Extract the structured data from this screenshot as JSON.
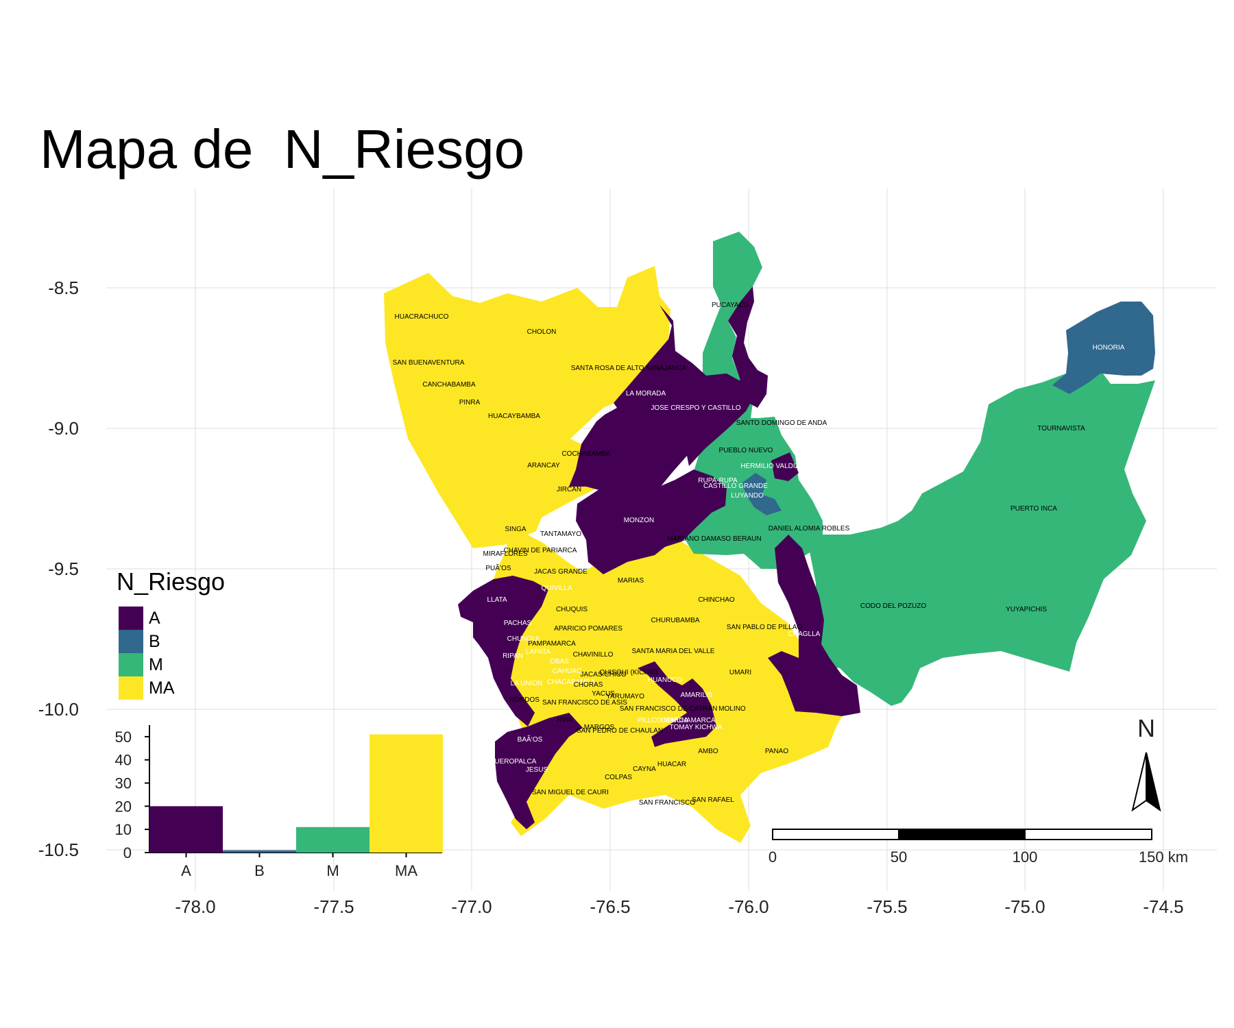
{
  "title": "Mapa de  N_Riesgo",
  "axes": {
    "x_ticks": [
      "-78.0",
      "-77.5",
      "-77.0",
      "-76.5",
      "-76.0",
      "-75.5",
      "-75.0",
      "-74.5"
    ],
    "y_ticks": [
      "-8.5",
      "-9.0",
      "-9.5",
      "-10.0",
      "-10.5"
    ]
  },
  "legend": {
    "title": "N_Riesgo",
    "items": [
      {
        "label": "A",
        "color": "#440154"
      },
      {
        "label": "B",
        "color": "#31688e"
      },
      {
        "label": "M",
        "color": "#35b779"
      },
      {
        "label": "MA",
        "color": "#fde725"
      }
    ]
  },
  "chart_data": {
    "type": "bar",
    "categories": [
      "A",
      "B",
      "M",
      "MA"
    ],
    "values": [
      20,
      1,
      11,
      51
    ],
    "y_ticks": [
      "0",
      "10",
      "20",
      "30",
      "40",
      "50"
    ],
    "ylim": [
      0,
      55
    ],
    "colors": [
      "#440154",
      "#31688e",
      "#35b779",
      "#fde725"
    ]
  },
  "scalebar": {
    "labels": [
      "0",
      "50",
      "100",
      "150 km"
    ]
  },
  "north_arrow": {
    "label": "N"
  },
  "district_labels": [
    "HUACRACHUCO",
    "CHOLON",
    "SAN BUENAVENTURA",
    "SANTA ROSA DE ALTO YANAJANCA",
    "CANCHABAMBA",
    "PINRA",
    "HUACAYBAMBA",
    "LA MORADA",
    "JOSE CRESPO Y CASTILLO",
    "SANTO DOMINGO DE ANDA",
    "PUCAYACU",
    "HONORIA",
    "TOURNAVISTA",
    "COCHABAMBA",
    "ARANCAY",
    "PUEBLO NUEVO",
    "HERMILIO VALDIZAN",
    "RUPA-RUPA",
    "CASTILLO GRANDE",
    "LUYANDO",
    "JIRCAN",
    "MONZON",
    "PUERTO INCA",
    "SINGA",
    "TANTAMAYO",
    "CHAVIN DE PARIARCA",
    "MIRAFLORES",
    "DANIEL ALOMIA ROBLES",
    "MARIANO DAMASO BERAUN",
    "PUÃ’OS",
    "JACAS GRANDE",
    "QUIVILLA",
    "MARIAS",
    "LLATA",
    "CHINCHAO",
    "CODO DEL POZUZO",
    "YUYAPICHIS",
    "CHUQUIS",
    "CHURUBAMBA",
    "PACHAS",
    "SAN PABLO DE PILLAO",
    "APARICIO POMARES",
    "CHAGLLA",
    "CHUNQUI",
    "PAMPAMARCA",
    "SANTA MARIA DEL VALLE",
    "RIPAN",
    "LAPATA",
    "CHAVINILLO",
    "OBAS",
    "CAHUAC",
    "JACAS CHICO",
    "QUISQUI (KICHKI)",
    "UMARI",
    "LA UNION",
    "CHACABAMBA",
    "CHORAS",
    "HUANUCO",
    "YACUS",
    "AMARILIS",
    "YARUMAYO",
    "RONDOS",
    "SAN FRANCISCO DE ASIS",
    "SAN FRANCISCO DE CAYRAN",
    "MOLINO",
    "JIVIA",
    "PILLCO MARCA",
    "CONCHAMARCA",
    "TOMAY KICHWA",
    "MARGOS",
    "SAN PEDRO DE CHAULAN",
    "BAÃ‘OS",
    "AMBO",
    "PANAO",
    "QUEROPALCA",
    "HUACAR",
    "JESUS",
    "CAYNA",
    "COLPAS",
    "SAN MIGUEL DE CAURI",
    "SAN FRANCISCO",
    "SAN RAFAEL"
  ]
}
